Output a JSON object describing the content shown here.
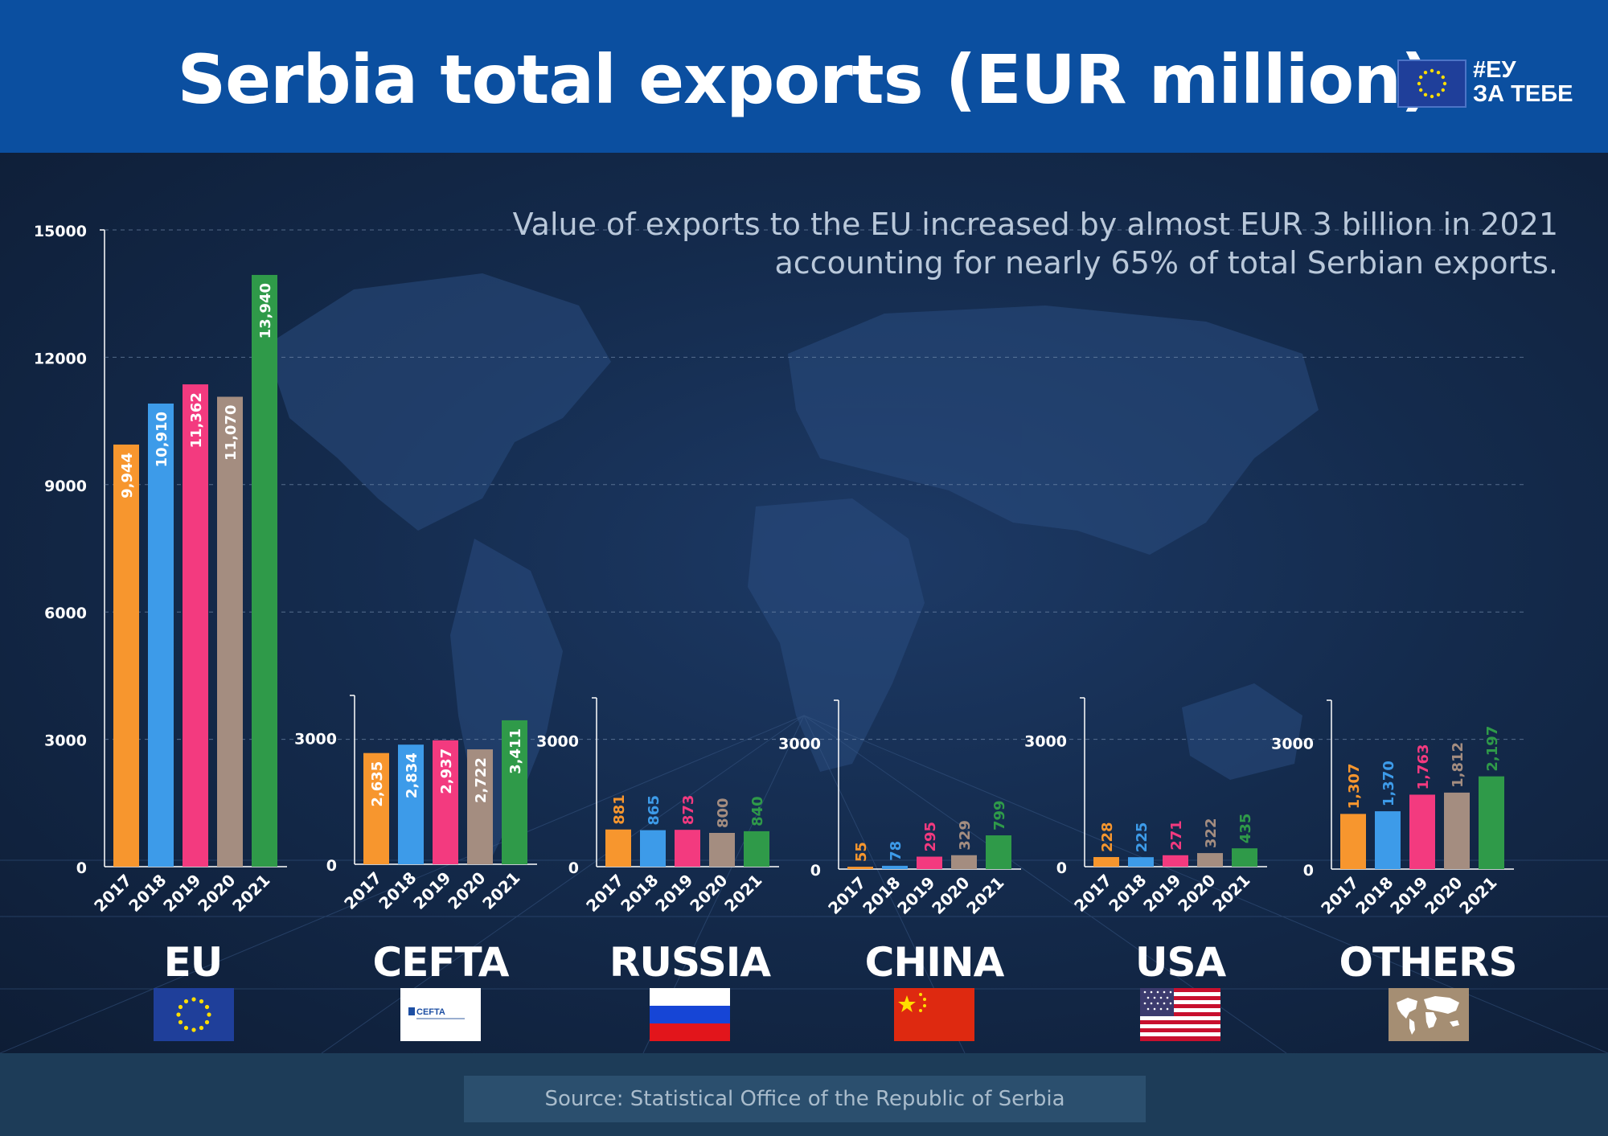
{
  "header": {
    "title": "Serbia total exports (EUR million)",
    "tag_line1": "#ЕУ",
    "tag_line2": "ЗА ТЕБЕ"
  },
  "subtitle": {
    "line1": "Value of exports to the EU increased by almost EUR 3 billion in 2021",
    "line2": "accounting for nearly 65% of total Serbian exports."
  },
  "footer": {
    "source": "Source: Statistical Office of the Republic of Serbia"
  },
  "colors": {
    "2017": "#f7962e",
    "2018": "#3d9be9",
    "2019": "#f33a7f",
    "2020": "#a48d80",
    "2021": "#2f9a49",
    "header": "#0b4fa0",
    "axis_text": "#ffffff"
  },
  "regions": [
    {
      "name": "EU",
      "flag": "eu-flag"
    },
    {
      "name": "CEFTA",
      "flag": "cefta-logo",
      "flag_text": "CEFTA"
    },
    {
      "name": "RUSSIA",
      "flag": "russia-flag"
    },
    {
      "name": "CHINA",
      "flag": "china-flag"
    },
    {
      "name": "USA",
      "flag": "usa-flag"
    },
    {
      "name": "OTHERS",
      "flag": "world-map-icon"
    }
  ],
  "chart_data": [
    {
      "type": "bar",
      "region": "EU",
      "categories": [
        "2017",
        "2018",
        "2019",
        "2020",
        "2021"
      ],
      "values": [
        9944,
        10910,
        11362,
        11070,
        13940
      ],
      "labels": [
        "9,944",
        "10,910",
        "11,362",
        "11,070",
        "13,940"
      ],
      "yticks": [
        "0",
        "3000",
        "6000",
        "9000",
        "12000",
        "15000"
      ],
      "ylim": [
        0,
        15000
      ]
    },
    {
      "type": "bar",
      "region": "CEFTA",
      "categories": [
        "2017",
        "2018",
        "2019",
        "2020",
        "2021"
      ],
      "values": [
        2635,
        2834,
        2937,
        2722,
        3411
      ],
      "labels": [
        "2,635",
        "2,834",
        "2,937",
        "2,722",
        "3,411"
      ],
      "yticks": [
        "0",
        "3000"
      ],
      "ylim": [
        0,
        4000
      ]
    },
    {
      "type": "bar",
      "region": "RUSSIA",
      "categories": [
        "2017",
        "2018",
        "2019",
        "2020",
        "2021"
      ],
      "values": [
        881,
        865,
        873,
        800,
        840
      ],
      "labels": [
        "881",
        "865",
        "873",
        "800",
        "840"
      ],
      "yticks": [
        "0",
        "3000"
      ],
      "ylim": [
        0,
        4000
      ]
    },
    {
      "type": "bar",
      "region": "CHINA",
      "categories": [
        "2017",
        "2018",
        "2019",
        "2020",
        "2021"
      ],
      "values": [
        55,
        78,
        295,
        329,
        799
      ],
      "labels": [
        "55",
        "78",
        "295",
        "329",
        "799"
      ],
      "yticks": [
        "0",
        "3000"
      ],
      "ylim": [
        0,
        4000
      ]
    },
    {
      "type": "bar",
      "region": "USA",
      "categories": [
        "2017",
        "2018",
        "2019",
        "2020",
        "2021"
      ],
      "values": [
        228,
        225,
        271,
        322,
        435
      ],
      "labels": [
        "228",
        "225",
        "271",
        "322",
        "435"
      ],
      "yticks": [
        "0",
        "3000"
      ],
      "ylim": [
        0,
        4000
      ]
    },
    {
      "type": "bar",
      "region": "OTHERS",
      "categories": [
        "2017",
        "2018",
        "2019",
        "2020",
        "2021"
      ],
      "values": [
        1307,
        1370,
        1763,
        1812,
        2197
      ],
      "labels": [
        "1,307",
        "1,370",
        "1,763",
        "1,812",
        "2,197"
      ],
      "yticks": [
        "0",
        "3000"
      ],
      "ylim": [
        0,
        4000
      ]
    }
  ]
}
